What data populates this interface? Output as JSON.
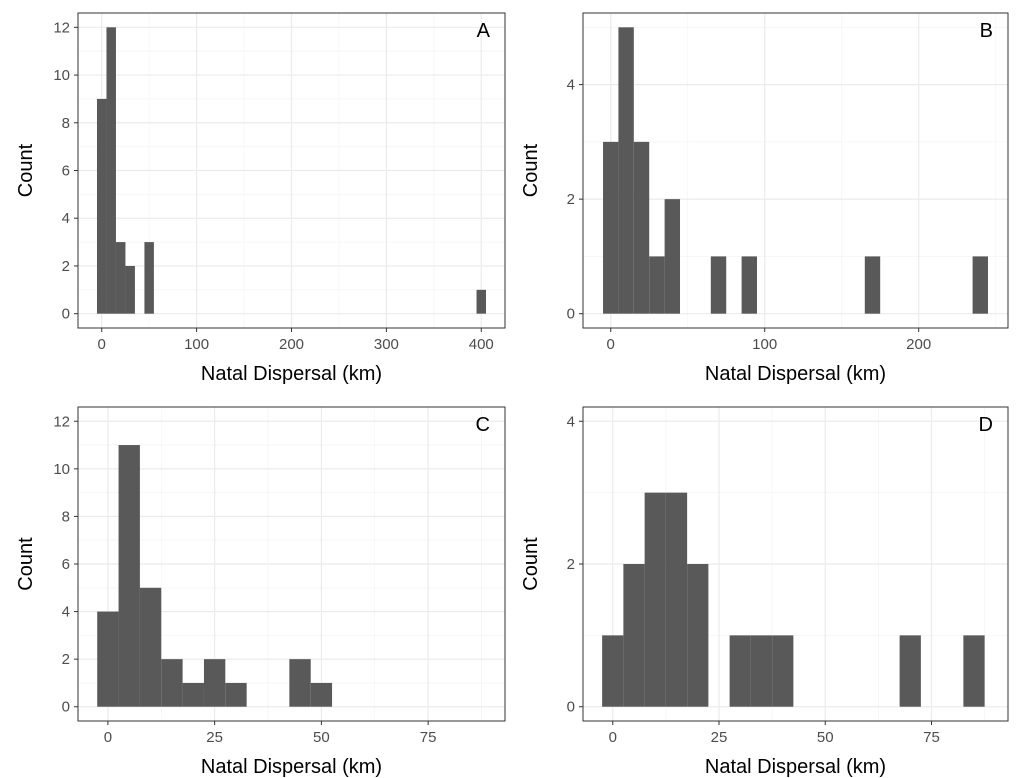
{
  "colors": {
    "bar": "#595959",
    "grid_major": "#ebebeb",
    "grid_minor": "#f5f5f5",
    "border": "#333333",
    "tick_text": "#4d4d4d"
  },
  "chart_data": [
    {
      "panel": "A",
      "type": "bar",
      "xlabel": "Natal Dispersal (km)",
      "ylabel": "Count",
      "xlim": [
        -25,
        425
      ],
      "ylim": [
        -0.6,
        12.6
      ],
      "xticks": [
        0,
        100,
        200,
        300,
        400
      ],
      "yticks": [
        0,
        2,
        4,
        6,
        8,
        10,
        12
      ],
      "bins": [
        {
          "x0": -5,
          "x1": 5,
          "count": 9
        },
        {
          "x0": 5,
          "x1": 15,
          "count": 12
        },
        {
          "x0": 15,
          "x1": 25,
          "count": 3
        },
        {
          "x0": 25,
          "x1": 35,
          "count": 2
        },
        {
          "x0": 45,
          "x1": 55,
          "count": 3
        },
        {
          "x0": 395,
          "x1": 405,
          "count": 1
        }
      ]
    },
    {
      "panel": "B",
      "type": "bar",
      "xlabel": "Natal Dispersal (km)",
      "ylabel": "Count",
      "xlim": [
        -18,
        258
      ],
      "ylim": [
        -0.25,
        5.25
      ],
      "xticks": [
        0,
        100,
        200
      ],
      "yticks": [
        0,
        2,
        4
      ],
      "bins": [
        {
          "x0": -5,
          "x1": 5,
          "count": 3
        },
        {
          "x0": 5,
          "x1": 15,
          "count": 5
        },
        {
          "x0": 15,
          "x1": 25,
          "count": 3
        },
        {
          "x0": 25,
          "x1": 35,
          "count": 1
        },
        {
          "x0": 35,
          "x1": 45,
          "count": 2
        },
        {
          "x0": 65,
          "x1": 75,
          "count": 1
        },
        {
          "x0": 85,
          "x1": 95,
          "count": 1
        },
        {
          "x0": 165,
          "x1": 175,
          "count": 1
        },
        {
          "x0": 235,
          "x1": 245,
          "count": 1
        }
      ]
    },
    {
      "panel": "C",
      "type": "bar",
      "xlabel": "Natal Dispersal (km)",
      "ylabel": "Count",
      "xlim": [
        -7,
        93
      ],
      "ylim": [
        -0.6,
        12.6
      ],
      "xticks": [
        0,
        25,
        50,
        75
      ],
      "yticks": [
        0,
        2,
        4,
        6,
        8,
        10,
        12
      ],
      "bins": [
        {
          "x0": -2.5,
          "x1": 2.5,
          "count": 4
        },
        {
          "x0": 2.5,
          "x1": 7.5,
          "count": 11
        },
        {
          "x0": 7.5,
          "x1": 12.5,
          "count": 5
        },
        {
          "x0": 12.5,
          "x1": 17.5,
          "count": 2
        },
        {
          "x0": 17.5,
          "x1": 22.5,
          "count": 1
        },
        {
          "x0": 22.5,
          "x1": 27.5,
          "count": 2
        },
        {
          "x0": 27.5,
          "x1": 32.5,
          "count": 1
        },
        {
          "x0": 42.5,
          "x1": 47.5,
          "count": 2
        },
        {
          "x0": 47.5,
          "x1": 52.5,
          "count": 1
        }
      ]
    },
    {
      "panel": "D",
      "type": "bar",
      "xlabel": "Natal Dispersal (km)",
      "ylabel": "Count",
      "xlim": [
        -7,
        93
      ],
      "ylim": [
        -0.2,
        4.2
      ],
      "xticks": [
        0,
        25,
        50,
        75
      ],
      "yticks": [
        0,
        2,
        4
      ],
      "bins": [
        {
          "x0": -2.5,
          "x1": 2.5,
          "count": 1
        },
        {
          "x0": 2.5,
          "x1": 7.5,
          "count": 2
        },
        {
          "x0": 7.5,
          "x1": 12.5,
          "count": 3
        },
        {
          "x0": 12.5,
          "x1": 17.5,
          "count": 3
        },
        {
          "x0": 17.5,
          "x1": 22.5,
          "count": 2
        },
        {
          "x0": 27.5,
          "x1": 32.5,
          "count": 1
        },
        {
          "x0": 32.5,
          "x1": 37.5,
          "count": 1
        },
        {
          "x0": 37.5,
          "x1": 42.5,
          "count": 1
        },
        {
          "x0": 67.5,
          "x1": 72.5,
          "count": 1
        },
        {
          "x0": 82.5,
          "x1": 87.5,
          "count": 1
        }
      ]
    }
  ]
}
